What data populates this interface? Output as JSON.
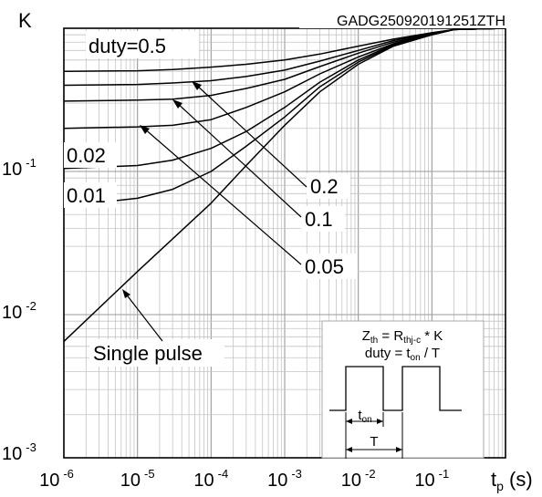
{
  "chart_data": {
    "type": "line",
    "code": "GADG250920191251ZTH",
    "xlabel": {
      "main": "t",
      "sub": "p",
      "unit": " (s)"
    },
    "ylabel": "K",
    "x_scale": "log",
    "y_scale": "log",
    "xlim": [
      1e-06,
      1
    ],
    "ylim": [
      0.001,
      1
    ],
    "grid": true,
    "x_ticks": [
      {
        "base": "10",
        "exp": "-6",
        "value": 1e-06
      },
      {
        "base": "10",
        "exp": "-5",
        "value": 1e-05
      },
      {
        "base": "10",
        "exp": "-4",
        "value": 0.0001
      },
      {
        "base": "10",
        "exp": "-3",
        "value": 0.001
      },
      {
        "base": "10",
        "exp": "-2",
        "value": 0.01
      },
      {
        "base": "10",
        "exp": "-1",
        "value": 0.1
      }
    ],
    "y_ticks": [
      {
        "base": "10",
        "exp": "-3",
        "value": 0.001
      },
      {
        "base": "10",
        "exp": "-2",
        "value": 0.01
      },
      {
        "base": "10",
        "exp": "-1",
        "value": 0.1
      }
    ],
    "series": [
      {
        "name": "duty=0.5",
        "x": [
          1e-06,
          1e-05,
          3e-05,
          0.0001,
          0.0003,
          0.001,
          0.003,
          0.01,
          0.03,
          0.1,
          0.2,
          1
        ],
        "y": [
          0.5,
          0.505,
          0.515,
          0.535,
          0.56,
          0.6,
          0.66,
          0.75,
          0.84,
          0.93,
          0.98,
          1.0
        ]
      },
      {
        "name": "0.2",
        "x": [
          1e-06,
          1e-05,
          3e-05,
          0.0001,
          0.0003,
          0.001,
          0.003,
          0.01,
          0.03,
          0.1,
          0.2,
          1
        ],
        "y": [
          0.4,
          0.405,
          0.415,
          0.43,
          0.46,
          0.51,
          0.59,
          0.7,
          0.82,
          0.92,
          0.98,
          1.0
        ]
      },
      {
        "name": "0.1",
        "x": [
          1e-06,
          1e-05,
          3e-05,
          0.0001,
          0.0003,
          0.001,
          0.003,
          0.01,
          0.03,
          0.1,
          0.2,
          1
        ],
        "y": [
          0.31,
          0.315,
          0.32,
          0.34,
          0.38,
          0.44,
          0.54,
          0.67,
          0.8,
          0.91,
          0.98,
          1.0
        ]
      },
      {
        "name": "0.05",
        "x": [
          1e-06,
          1e-05,
          3e-05,
          0.0001,
          0.0003,
          0.001,
          0.003,
          0.01,
          0.03,
          0.1,
          0.2,
          1
        ],
        "y": [
          0.2,
          0.205,
          0.21,
          0.23,
          0.28,
          0.36,
          0.48,
          0.63,
          0.78,
          0.91,
          0.98,
          1.0
        ]
      },
      {
        "name": "0.02",
        "x": [
          1e-06,
          1e-05,
          3e-05,
          0.0001,
          0.0003,
          0.001,
          0.003,
          0.01,
          0.03,
          0.1,
          0.2,
          1
        ],
        "y": [
          0.105,
          0.11,
          0.12,
          0.145,
          0.19,
          0.28,
          0.42,
          0.6,
          0.77,
          0.9,
          0.98,
          1.0
        ]
      },
      {
        "name": "0.01",
        "x": [
          1e-06,
          1e-05,
          3e-05,
          0.0001,
          0.0003,
          0.001,
          0.003,
          0.01,
          0.03,
          0.1,
          0.2,
          1
        ],
        "y": [
          0.057,
          0.065,
          0.075,
          0.1,
          0.15,
          0.24,
          0.39,
          0.58,
          0.76,
          0.9,
          0.98,
          1.0
        ]
      },
      {
        "name": "Single pulse",
        "x": [
          1e-06,
          1e-05,
          0.0001,
          0.0003,
          0.001,
          0.003,
          0.01,
          0.03,
          0.1,
          0.2,
          1
        ],
        "y": [
          0.0065,
          0.02,
          0.06,
          0.11,
          0.21,
          0.36,
          0.56,
          0.75,
          0.9,
          0.98,
          1.0
        ]
      }
    ],
    "annotations": [
      {
        "label": "duty=0.5",
        "kind": "curve-label"
      },
      {
        "label": "0.2",
        "kind": "arrow-callout",
        "series": "0.2"
      },
      {
        "label": "0.1",
        "kind": "arrow-callout",
        "series": "0.1"
      },
      {
        "label": "0.05",
        "kind": "arrow-callout",
        "series": "0.05"
      },
      {
        "label": "0.02",
        "kind": "curve-label"
      },
      {
        "label": "0.01",
        "kind": "curve-label"
      },
      {
        "label": "Single pulse",
        "kind": "arrow-callout",
        "series": "Single pulse"
      }
    ],
    "inset": {
      "formula": {
        "z_main": "Z",
        "z_sub": "th",
        "eq": " = R",
        "r_sub": "thj-c",
        "tail": " * K"
      },
      "duty_formula": {
        "head": "duty = t",
        "sub": "on",
        "tail": " / T"
      },
      "ton_label": {
        "main": "t",
        "sub": "on"
      },
      "period_label": "T"
    }
  }
}
